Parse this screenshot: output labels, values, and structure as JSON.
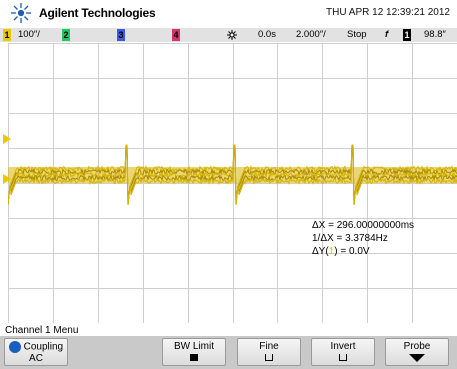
{
  "header": {
    "brand": "Agilent Technologies",
    "datetime": "THU APR 12 12:39:21 2012"
  },
  "statusbar": {
    "ch1_label": "1",
    "ch1_scale": "100″/",
    "ch2_label": "2",
    "ch3_label": "3",
    "ch4_label": "4",
    "time_delay": "0.0s",
    "time_scale": "2.000″/",
    "run_state": "Stop",
    "trigger_symbol": "f",
    "trigger_channel": "1",
    "trigger_level": "98.8″",
    "colors": {
      "ch1": "#e8c800",
      "ch2": "#22c55e",
      "ch3": "#3b5bdb",
      "ch4": "#d6336c"
    }
  },
  "waveform": {
    "color": "#d8b400",
    "edge_color": "#a88a00"
  },
  "readouts": {
    "delta_x": "ΔX = 296.00000000ms",
    "inv_delta_x": "1/ΔX = 3.3784Hz",
    "delta_y_prefix": "ΔY(",
    "delta_y_channel": "1",
    "delta_y_suffix": ") = 0.0V"
  },
  "menu": {
    "title": "Channel 1  Menu",
    "softkeys": [
      {
        "label": "Coupling",
        "value": "AC",
        "icon": "coupling-rotate-icon"
      },
      {
        "label": "BW Limit",
        "value": "",
        "icon": "checkbox-filled-icon"
      },
      {
        "label": "Fine",
        "value": "",
        "icon": "checkbox-empty-icon"
      },
      {
        "label": "Invert",
        "value": "",
        "icon": "checkbox-empty-icon"
      },
      {
        "label": "Probe",
        "value": "",
        "icon": "down-arrow-icon"
      }
    ]
  }
}
